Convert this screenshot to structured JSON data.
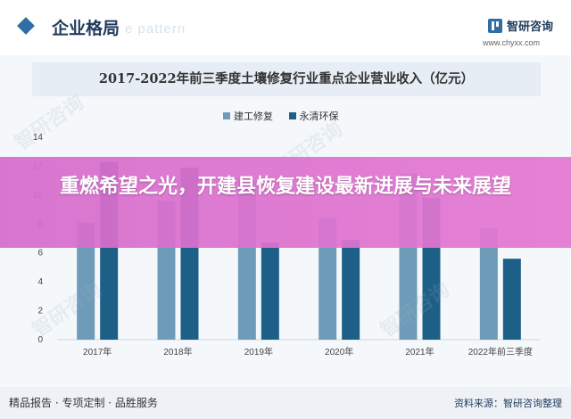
{
  "header": {
    "title": "企业格局",
    "ghost_text": "e pattern",
    "brand": "智研咨询",
    "site": "www.chyxx.com"
  },
  "banner": {
    "headline": "重燃希望之光，开建县恢复建设最新进展与未来展望"
  },
  "footer": {
    "left": "精品报告 · 专项定制 · 品胜服务",
    "right": "资料来源：智研咨询整理"
  },
  "watermark": "智研咨询",
  "colors": {
    "series1": "#6d9bb8",
    "series2": "#1d5f86",
    "banner": "#d96ccb",
    "title_band": "#e6edf4"
  },
  "chart_data": {
    "type": "bar",
    "title": "2017-2022年前三季度土壤修复行业重点企业营业收入（亿元）",
    "categories": [
      "2017年",
      "2018年",
      "2019年",
      "2020年",
      "2021年",
      "2022年前三季度"
    ],
    "series": [
      {
        "name": "建工修复",
        "values": [
          8.1,
          9.6,
          11.0,
          8.4,
          11.5,
          7.7
        ]
      },
      {
        "name": "永清环保",
        "values": [
          12.3,
          11.9,
          6.7,
          6.9,
          9.8,
          5.6
        ]
      }
    ],
    "yticks": [
      "0",
      "2",
      "4",
      "6",
      "8",
      "10",
      "12",
      "14"
    ],
    "ylim": [
      0,
      14
    ],
    "grid": false,
    "legend_position": "top"
  }
}
